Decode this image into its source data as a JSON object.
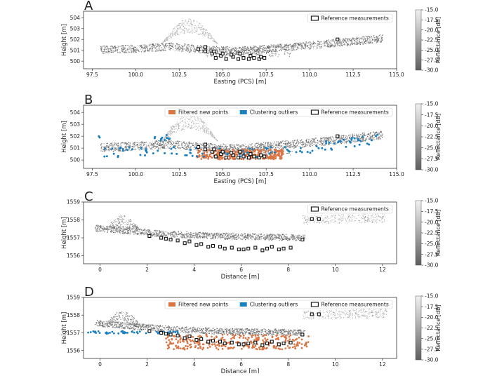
{
  "figure": {
    "colors": {
      "reference": "#111111",
      "filtered": "#d97445",
      "outliers": "#1a7fbf",
      "cbar_top": "#f2f2f2",
      "cbar_bottom": "#5e5e5e"
    }
  },
  "chart_data": [
    {
      "panel": "A",
      "type": "scatter",
      "xlabel": "Easting (PCS) [m]",
      "ylabel": "Height [m]",
      "xlim": [
        97,
        115
      ],
      "ylim": [
        499.3,
        504.6
      ],
      "xticks": [
        "97.5",
        "100.0",
        "102.5",
        "105.0",
        "107.5",
        "110.0",
        "112.5",
        "115.0"
      ],
      "xtick_values": [
        97.5,
        100.0,
        102.5,
        105.0,
        107.5,
        110.0,
        112.5,
        115.0
      ],
      "yticks": [
        "500",
        "501",
        "502",
        "503",
        "504"
      ],
      "ytick_values": [
        500,
        501,
        502,
        503,
        504
      ],
      "legend": [
        "Reference measurements"
      ],
      "colorbar": {
        "label": "Reflectance [dB]",
        "range": [
          -30.0,
          -15.0
        ],
        "ticks": [
          "-15.0",
          "-17.5",
          "-20.0",
          "-22.5",
          "-25.0",
          "-27.5",
          "-30.0"
        ]
      },
      "series": [
        {
          "name": "Reference measurements",
          "x": [
            103.6,
            104.0,
            104.4,
            104.6,
            104.9,
            105.2,
            105.6,
            105.9,
            106.2,
            106.5,
            106.8,
            107.1,
            107.4,
            104.0,
            104.5,
            105.0,
            105.5,
            106.0,
            106.6,
            107.2,
            111.6
          ],
          "y": [
            501.1,
            500.9,
            500.7,
            500.3,
            500.5,
            500.2,
            500.4,
            500.2,
            500.3,
            500.2,
            500.3,
            500.2,
            500.3,
            501.3,
            500.9,
            500.7,
            500.6,
            500.7,
            500.5,
            500.4,
            502.0
          ]
        }
      ]
    },
    {
      "panel": "B",
      "type": "scatter",
      "xlabel": "Easting (PCS) [m]",
      "ylabel": "Height [m]",
      "xlim": [
        97,
        115
      ],
      "ylim": [
        499.3,
        504.6
      ],
      "xticks": [
        "97.5",
        "100.0",
        "102.5",
        "105.0",
        "107.5",
        "110.0",
        "112.5",
        "115.0"
      ],
      "xtick_values": [
        97.5,
        100.0,
        102.5,
        105.0,
        107.5,
        110.0,
        112.5,
        115.0
      ],
      "yticks": [
        "500",
        "501",
        "502",
        "503",
        "504"
      ],
      "ytick_values": [
        500,
        501,
        502,
        503,
        504
      ],
      "legend": [
        "Filtered new points",
        "Clustering outliers",
        "Reference measurements"
      ],
      "colorbar": {
        "label": "Reflectance [dB]",
        "range": [
          -30.0,
          -15.0
        ],
        "ticks": [
          "-15.0",
          "-17.5",
          "-20.0",
          "-22.5",
          "-25.0",
          "-27.5",
          "-30.0"
        ]
      },
      "series": [
        {
          "name": "Reference measurements",
          "x": [
            103.6,
            104.0,
            104.4,
            104.6,
            104.9,
            105.2,
            105.6,
            105.9,
            106.2,
            106.5,
            106.8,
            107.1,
            107.4,
            104.0,
            104.5,
            105.0,
            105.5,
            106.0,
            106.6,
            107.2,
            111.6
          ],
          "y": [
            501.1,
            500.9,
            500.7,
            500.3,
            500.5,
            500.2,
            500.4,
            500.2,
            500.3,
            500.2,
            500.3,
            500.2,
            500.3,
            501.3,
            500.9,
            500.7,
            500.6,
            500.7,
            500.5,
            500.4,
            502.0
          ]
        }
      ]
    },
    {
      "panel": "C",
      "type": "scatter",
      "xlabel": "Distance [m]",
      "ylabel": "Height [m]",
      "xlim": [
        -0.7,
        12.6
      ],
      "ylim": [
        1555.55,
        1559.0
      ],
      "xticks": [
        "0",
        "2",
        "4",
        "6",
        "8",
        "10",
        "12"
      ],
      "xtick_values": [
        0,
        2,
        4,
        6,
        8,
        10,
        12
      ],
      "yticks": [
        "1556",
        "1557",
        "1558",
        "1559"
      ],
      "ytick_values": [
        1556,
        1557,
        1558,
        1559
      ],
      "legend": [
        "Reference measurements"
      ],
      "colorbar": {
        "label": "Reflectance [dB]",
        "range": [
          -30.0,
          -15.0
        ],
        "ticks": [
          "-15.0",
          "-17.5",
          "-20.0",
          "-22.5",
          "-25.0",
          "-27.5",
          "-30.0"
        ]
      },
      "series": [
        {
          "name": "Reference measurements",
          "x": [
            2.1,
            2.6,
            2.8,
            3.0,
            3.3,
            3.6,
            3.8,
            4.1,
            4.3,
            4.6,
            4.8,
            5.1,
            5.3,
            5.6,
            5.9,
            6.1,
            6.3,
            6.6,
            6.9,
            7.1,
            7.3,
            7.6,
            7.8,
            8.1,
            8.6,
            9.0,
            9.3
          ],
          "y": [
            1557.1,
            1557.0,
            1556.95,
            1556.9,
            1556.85,
            1556.7,
            1556.8,
            1556.6,
            1556.65,
            1556.5,
            1556.55,
            1556.5,
            1556.4,
            1556.45,
            1556.35,
            1556.35,
            1556.4,
            1556.45,
            1556.3,
            1556.4,
            1556.5,
            1556.35,
            1556.4,
            1556.45,
            1556.9,
            1558.05,
            1558.05
          ]
        }
      ]
    },
    {
      "panel": "D",
      "type": "scatter",
      "xlabel": "Distance [m]",
      "ylabel": "Height [m]",
      "xlim": [
        -0.7,
        12.6
      ],
      "ylim": [
        1555.55,
        1559.0
      ],
      "xticks": [
        "0",
        "2",
        "4",
        "6",
        "8",
        "10",
        "12"
      ],
      "xtick_values": [
        0,
        2,
        4,
        6,
        8,
        10,
        12
      ],
      "yticks": [
        "1556",
        "1557",
        "1558",
        "1559"
      ],
      "ytick_values": [
        1556,
        1557,
        1558,
        1559
      ],
      "legend": [
        "Filtered new points",
        "Clustering outliers",
        "Reference measurements"
      ],
      "colorbar": {
        "label": "Reflectance [dB]",
        "range": [
          -30.0,
          -15.0
        ],
        "ticks": [
          "-15.0",
          "-17.5",
          "-20.0",
          "-22.5",
          "-25.0",
          "-27.5",
          "-30.0"
        ]
      },
      "series": [
        {
          "name": "Reference measurements",
          "x": [
            2.1,
            2.6,
            2.8,
            3.0,
            3.3,
            3.6,
            3.8,
            4.1,
            4.3,
            4.6,
            4.8,
            5.1,
            5.3,
            5.6,
            5.9,
            6.1,
            6.3,
            6.6,
            6.9,
            7.1,
            7.3,
            7.6,
            7.8,
            8.1,
            8.6,
            9.0,
            9.3
          ],
          "y": [
            1557.1,
            1557.0,
            1556.95,
            1556.9,
            1556.85,
            1556.7,
            1556.8,
            1556.6,
            1556.65,
            1556.5,
            1556.55,
            1556.5,
            1556.4,
            1556.45,
            1556.35,
            1556.35,
            1556.4,
            1556.45,
            1556.3,
            1556.4,
            1556.5,
            1556.35,
            1556.4,
            1556.45,
            1556.9,
            1558.05,
            1558.05
          ]
        }
      ]
    }
  ]
}
